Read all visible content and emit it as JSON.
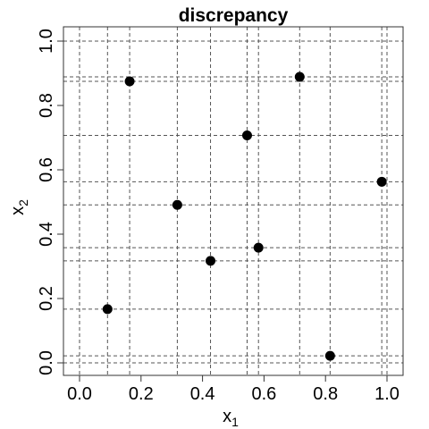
{
  "chart_data": {
    "type": "scatter",
    "title": "discrepancy",
    "xlabel": "x",
    "xlabel_sub": "1",
    "ylabel": "x",
    "ylabel_sub": "2",
    "xlim": [
      0,
      1
    ],
    "ylim": [
      0,
      1
    ],
    "x_ticks": [
      0.0,
      0.2,
      0.4,
      0.6,
      0.8,
      1.0
    ],
    "y_ticks": [
      0.0,
      0.2,
      0.4,
      0.6,
      0.8,
      1.0
    ],
    "x_tick_labels": [
      "0.0",
      "0.2",
      "0.4",
      "0.6",
      "0.8",
      "1.0"
    ],
    "y_tick_labels": [
      "0.0",
      "0.2",
      "0.4",
      "0.6",
      "0.8",
      "1.0"
    ],
    "grid": "dashed lines through the x and y values of every point, plus the 0 and 1 boundaries",
    "point_color": "#000000",
    "points": [
      {
        "x": 0.091,
        "y": 0.167
      },
      {
        "x": 0.163,
        "y": 0.875
      },
      {
        "x": 0.318,
        "y": 0.491
      },
      {
        "x": 0.426,
        "y": 0.317
      },
      {
        "x": 0.545,
        "y": 0.707
      },
      {
        "x": 0.582,
        "y": 0.358
      },
      {
        "x": 0.716,
        "y": 0.889
      },
      {
        "x": 0.815,
        "y": 0.022
      },
      {
        "x": 0.983,
        "y": 0.563
      }
    ]
  }
}
